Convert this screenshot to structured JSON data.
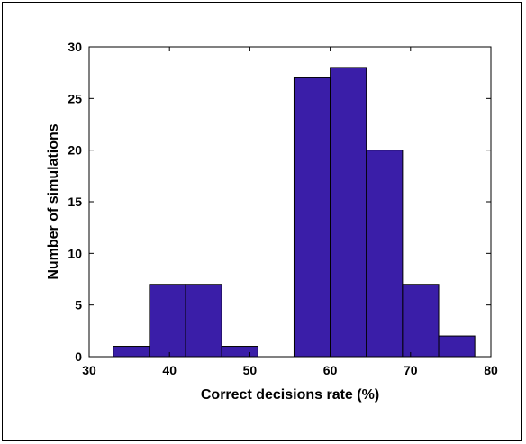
{
  "chart_data": {
    "type": "bar",
    "title": "",
    "xlabel": "Correct decisions rate (%)",
    "ylabel": "Number of simulations",
    "xlim": [
      30,
      80
    ],
    "ylim": [
      0,
      30
    ],
    "xticks": [
      "30",
      "40",
      "50",
      "60",
      "70",
      "80"
    ],
    "yticks": [
      "0",
      "5",
      "10",
      "15",
      "20",
      "25",
      "30"
    ],
    "bar_color": "#3a1ea8",
    "bins": [
      {
        "x0": 33.0,
        "x1": 37.5,
        "value": 1
      },
      {
        "x0": 37.5,
        "x1": 42.0,
        "value": 7
      },
      {
        "x0": 42.0,
        "x1": 46.5,
        "value": 7
      },
      {
        "x0": 46.5,
        "x1": 51.0,
        "value": 1
      },
      {
        "x0": 51.0,
        "x1": 55.5,
        "value": 0
      },
      {
        "x0": 55.5,
        "x1": 60.0,
        "value": 27
      },
      {
        "x0": 60.0,
        "x1": 64.5,
        "value": 28
      },
      {
        "x0": 64.5,
        "x1": 69.0,
        "value": 20
      },
      {
        "x0": 69.0,
        "x1": 73.5,
        "value": 7
      },
      {
        "x0": 73.5,
        "x1": 78.0,
        "value": 2
      }
    ],
    "grid": false,
    "legend": "none"
  }
}
